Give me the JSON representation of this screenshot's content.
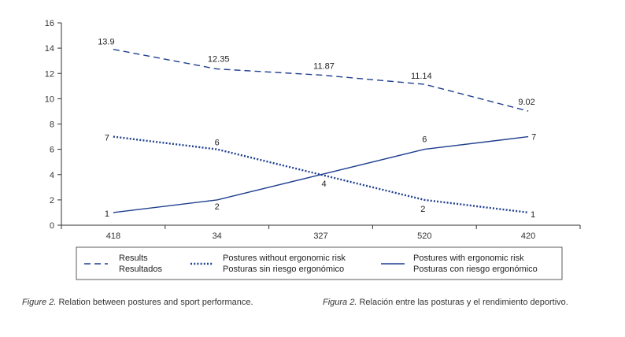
{
  "chart_data": {
    "type": "line",
    "title": "",
    "xlabel": "",
    "ylabel": "",
    "categories": [
      "418",
      "34",
      "327",
      "520",
      "420"
    ],
    "ylim": [
      0,
      16
    ],
    "yticks": [
      0,
      2,
      4,
      6,
      8,
      10,
      12,
      14,
      16
    ],
    "grid": false,
    "legend_position": "bottom",
    "series": [
      {
        "name": "Results",
        "name_es": "Resultados",
        "style": "dashed",
        "color": "#1f3f8f",
        "values": [
          13.9,
          12.35,
          11.87,
          11.14,
          9.02
        ],
        "labels": [
          "13.9",
          "12.35",
          "11.87",
          "11.14",
          "9.02"
        ]
      },
      {
        "name": "Postures without ergonomic risk",
        "name_es": "Posturas sin riesgo ergonómico",
        "style": "dotted",
        "color": "#1f3f8f",
        "values": [
          7,
          6,
          4,
          2,
          1
        ],
        "labels": [
          "7",
          "6",
          "4",
          "2",
          "1"
        ]
      },
      {
        "name": "Postures with ergonomic risk",
        "name_es": "Posturas con riesgo ergonómico",
        "style": "solid",
        "color": "#1f3f8f",
        "values": [
          1,
          2,
          4,
          6,
          7
        ],
        "labels": [
          "1",
          "2",
          "4",
          "6",
          "7"
        ]
      }
    ]
  },
  "captions": {
    "en_prefix": "Figure 2.",
    "en_text": "Relation between postures and sport performance.",
    "es_prefix": "Figura 2.",
    "es_text": "Relación entre las posturas y el rendimiento deportivo."
  }
}
